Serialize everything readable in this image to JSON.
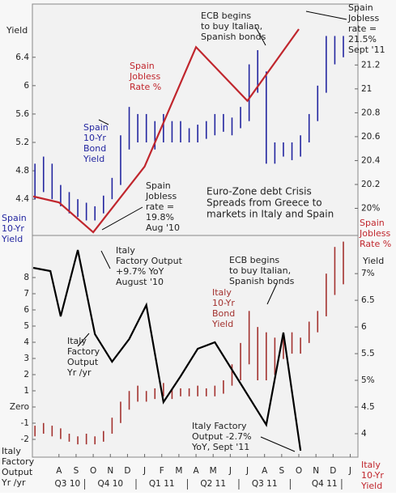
{
  "chart_data": [
    {
      "type": "combo",
      "xlim": [
        -1.55,
        17.45
      ],
      "ylim": [
        3.9,
        7.15
      ],
      "yticks": [
        4.4,
        4.8,
        5.2,
        5.6,
        6,
        6.4
      ],
      "y2lim": [
        19.78,
        21.71
      ],
      "y2ticks": [
        {
          "value": 20,
          "label": "20%"
        },
        20.2,
        20.4,
        20.6,
        20.8,
        21,
        21.2
      ],
      "series": [
        {
          "kind": "range",
          "color": "#2326a0",
          "x": [
            -1.4,
            -0.9,
            -0.4,
            0.1,
            0.6,
            1.1,
            1.6,
            2.1,
            2.6,
            3.1,
            3.6,
            4.1,
            4.6,
            5.1,
            5.6,
            6.1,
            6.6,
            7.1,
            7.6,
            8.1,
            8.6,
            9.1,
            9.6,
            10.1,
            10.6,
            11.1,
            11.6,
            12.1,
            12.6,
            13.1,
            13.6,
            14.1,
            14.6,
            15.1,
            15.6,
            16.1,
            16.6
          ],
          "highs": [
            4.9,
            5.0,
            4.9,
            4.6,
            4.5,
            4.4,
            4.35,
            4.3,
            4.45,
            4.7,
            5.3,
            5.7,
            5.6,
            5.6,
            5.5,
            5.6,
            5.5,
            5.5,
            5.4,
            5.45,
            5.5,
            5.6,
            5.6,
            5.55,
            5.7,
            6.3,
            6.5,
            6.2,
            5.2,
            5.2,
            5.2,
            5.3,
            5.6,
            6.0,
            6.7,
            6.7,
            6.7
          ],
          "lows": [
            4.4,
            4.5,
            4.4,
            4.3,
            4.2,
            4.15,
            4.1,
            4.1,
            4.2,
            4.4,
            4.6,
            5.1,
            5.2,
            5.2,
            5.1,
            5.2,
            5.2,
            5.2,
            5.2,
            5.2,
            5.25,
            5.3,
            5.35,
            5.3,
            5.4,
            5.5,
            5.9,
            4.9,
            4.9,
            5.0,
            4.95,
            5.0,
            5.2,
            5.5,
            5.9,
            6.3,
            6.4
          ]
        },
        {
          "kind": "line",
          "axis": "y2",
          "color": "#c0262d",
          "x": [
            -1.5,
            0,
            2,
            5,
            8,
            11,
            14
          ],
          "values": [
            20.1,
            20.05,
            19.8,
            20.35,
            21.35,
            20.9,
            21.5
          ]
        }
      ],
      "annotations": [
        [
          "Yield"
        ],
        [
          "Spain",
          "10-Yr",
          "Yield"
        ],
        [
          "Spain",
          "Jobless",
          "Rate %"
        ],
        [
          "ECB begins",
          "to buy Italian,",
          "Spanish bonds"
        ],
        [
          "Spain",
          "Jobless",
          "rate =",
          "21.5%",
          "Sept '11"
        ],
        [
          "Spain",
          "Jobless",
          "Rate %"
        ],
        [
          "Spain",
          "10-Yr",
          "Bond",
          "Yield"
        ],
        [
          "Spain",
          "Jobless",
          "rate =",
          "19.8%",
          "Aug '10"
        ],
        [
          "Euro-Zone debt Crisis",
          "Spreads from Greece to",
          "markets in Italy and Spain"
        ]
      ]
    },
    {
      "type": "combo",
      "xlim": [
        -1.55,
        17.45
      ],
      "xticks": [
        {
          "value": 0,
          "label": "A"
        },
        {
          "value": 1,
          "label": "S"
        },
        {
          "value": 2,
          "label": "O"
        },
        {
          "value": 3,
          "label": "N"
        },
        {
          "value": 4,
          "label": "D"
        },
        {
          "value": 5,
          "label": "J"
        },
        {
          "value": 6,
          "label": "F"
        },
        {
          "value": 7,
          "label": "M"
        },
        {
          "value": 8,
          "label": "A"
        },
        {
          "value": 9,
          "label": "M"
        },
        {
          "value": 10,
          "label": "J"
        },
        {
          "value": 11,
          "label": "J"
        },
        {
          "value": 12,
          "label": "A"
        },
        {
          "value": 13,
          "label": "S"
        },
        {
          "value": 14,
          "label": "O"
        },
        {
          "value": 15,
          "label": "N"
        },
        {
          "value": 16,
          "label": "D"
        },
        {
          "value": 17,
          "label": "J"
        }
      ],
      "quarters": [
        "Q3 10",
        "Q4 10",
        "Q1 11",
        "Q2 11",
        "Q3 11",
        "Q4 11"
      ],
      "ylim": [
        -3.1,
        10.55
      ],
      "yticks": [
        -2,
        -1,
        {
          "value": 0,
          "label": "Zero"
        },
        1,
        2,
        3,
        4,
        5,
        6,
        7,
        8
      ],
      "y2lim": [
        3.56,
        7.7
      ],
      "y2ticks": [
        4,
        4.5,
        {
          "value": 5,
          "label": "5%"
        },
        5.5,
        6,
        6.5,
        {
          "value": 7,
          "label": "7%"
        }
      ],
      "series": [
        {
          "kind": "range",
          "axis": "y2",
          "color": "#a3322f",
          "x": [
            -1.4,
            -0.9,
            -0.4,
            0.1,
            0.6,
            1.1,
            1.6,
            2.1,
            2.6,
            3.1,
            3.6,
            4.1,
            4.6,
            5.1,
            5.6,
            6.1,
            6.6,
            7.1,
            7.6,
            8.1,
            8.6,
            9.1,
            9.6,
            10.1,
            10.6,
            11.1,
            11.6,
            12.1,
            12.6,
            13.1,
            13.6,
            14.1,
            14.6,
            15.1,
            15.6,
            16.1,
            16.6
          ],
          "highs": [
            4.15,
            4.2,
            4.15,
            4.1,
            4.0,
            3.95,
            4.0,
            3.95,
            4.05,
            4.3,
            4.6,
            4.8,
            4.9,
            4.8,
            4.85,
            4.95,
            4.85,
            4.85,
            4.85,
            4.9,
            4.85,
            4.9,
            5.0,
            5.3,
            5.7,
            6.3,
            6.0,
            5.9,
            5.8,
            5.8,
            5.9,
            5.8,
            6.1,
            6.3,
            7.0,
            7.5,
            7.6
          ],
          "lows": [
            3.95,
            4.0,
            3.95,
            3.9,
            3.85,
            3.8,
            3.8,
            3.8,
            3.85,
            4.0,
            4.2,
            4.45,
            4.6,
            4.6,
            4.65,
            4.7,
            4.65,
            4.7,
            4.7,
            4.7,
            4.7,
            4.7,
            4.75,
            4.9,
            5.0,
            5.3,
            5.0,
            5.0,
            5.1,
            5.4,
            5.5,
            5.5,
            5.7,
            5.9,
            6.2,
            6.6,
            6.8
          ]
        },
        {
          "kind": "line",
          "color": "#000000",
          "x": [
            -1.5,
            -0.5,
            0.1,
            1.1,
            2.1,
            3.1,
            4.1,
            5.1,
            6.1,
            7.1,
            8.1,
            9.1,
            10.1,
            11.1,
            12.1,
            13.1,
            14.1
          ],
          "values": [
            8.6,
            8.4,
            5.6,
            9.7,
            4.5,
            2.8,
            4.2,
            6.3,
            0.3,
            1.9,
            3.6,
            4.0,
            2.3,
            0.6,
            -1.1,
            4.6,
            -2.7
          ]
        }
      ],
      "annotations": [
        [
          "Yield"
        ],
        [
          "Italy",
          "Factory Output",
          "+9.7% YoY",
          "August '10"
        ],
        [
          "Italy",
          "Factory",
          "Output",
          "Yr /yr"
        ],
        [
          "ECB begins",
          "to buy Italian,",
          "Spanish bonds"
        ],
        [
          "Italy",
          "10-Yr",
          "Bond",
          "Yield"
        ],
        [
          "Italy Factory",
          "Output -2.7%",
          "YoY, Sept '11"
        ],
        [
          "Italy",
          "Factory",
          "Output",
          "Yr /yr"
        ],
        [
          "Italy",
          "10-Yr",
          "Yield"
        ]
      ]
    }
  ]
}
